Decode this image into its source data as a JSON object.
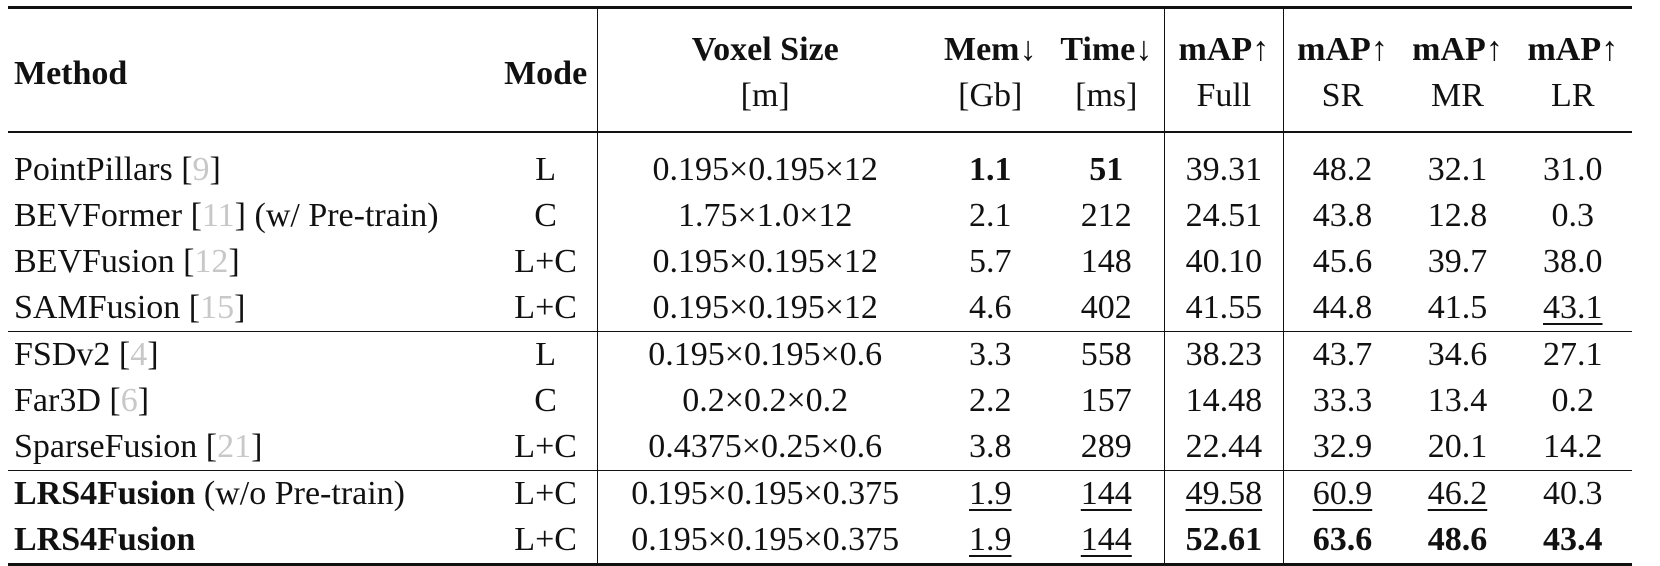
{
  "header": {
    "method": "Method",
    "mode": "Mode",
    "voxel_size": "Voxel Size",
    "voxel_unit": "[m]",
    "mem": "Mem↓",
    "mem_unit": "[Gb]",
    "time": "Time↓",
    "time_unit": "[ms]",
    "map_full": "mAP↑",
    "map_full_sub": "Full",
    "map_sr": "mAP↑",
    "map_sr_sub": "SR",
    "map_mr": "mAP↑",
    "map_mr_sub": "MR",
    "map_lr": "mAP↑",
    "map_lr_sub": "LR"
  },
  "rows": [
    {
      "name": "PointPillars [",
      "ref": "9",
      "suffix": "]",
      "mode": "L",
      "voxel": "0.195×0.195×12",
      "mem": "1.1",
      "time": "51",
      "full": "39.31",
      "sr": "48.2",
      "mr": "32.1",
      "lr": "31.0"
    },
    {
      "name": "BEVFormer [",
      "ref": "11",
      "suffix": "] (w/ Pre-train)",
      "mode": "C",
      "voxel": "1.75×1.0×12",
      "mem": "2.1",
      "time": "212",
      "full": "24.51",
      "sr": "43.8",
      "mr": "12.8",
      "lr": "0.3"
    },
    {
      "name": "BEVFusion [",
      "ref": "12",
      "suffix": "]",
      "mode": "L+C",
      "voxel": "0.195×0.195×12",
      "mem": "5.7",
      "time": "148",
      "full": "40.10",
      "sr": "45.6",
      "mr": "39.7",
      "lr": "38.0"
    },
    {
      "name": "SAMFusion [",
      "ref": "15",
      "suffix": "]",
      "mode": "L+C",
      "voxel": "0.195×0.195×12",
      "mem": "4.6",
      "time": "402",
      "full": "41.55",
      "sr": "44.8",
      "mr": "41.5",
      "lr": "43.1"
    },
    {
      "name": "FSDv2 [",
      "ref": "4",
      "suffix": "]",
      "mode": "L",
      "voxel": "0.195×0.195×0.6",
      "mem": "3.3",
      "time": "558",
      "full": "38.23",
      "sr": "43.7",
      "mr": "34.6",
      "lr": "27.1"
    },
    {
      "name": "Far3D [",
      "ref": "6",
      "suffix": "]",
      "mode": "C",
      "voxel": "0.2×0.2×0.2",
      "mem": "2.2",
      "time": "157",
      "full": "14.48",
      "sr": "33.3",
      "mr": "13.4",
      "lr": "0.2"
    },
    {
      "name": "SparseFusion [",
      "ref": "21",
      "suffix": "]",
      "mode": "L+C",
      "voxel": "0.4375×0.25×0.6",
      "mem": "3.8",
      "time": "289",
      "full": "22.44",
      "sr": "32.9",
      "mr": "20.1",
      "lr": "14.2"
    },
    {
      "name": "LRS4Fusion",
      "suffix": " (w/o Pre-train)",
      "mode": "L+C",
      "voxel": "0.195×0.195×0.375",
      "mem": "1.9",
      "time": "144",
      "full": "49.58",
      "sr": "60.9",
      "mr": "46.2",
      "lr": "40.3"
    },
    {
      "name": "LRS4Fusion",
      "mode": "L+C",
      "voxel": "0.195×0.195×0.375",
      "mem": "1.9",
      "time": "144",
      "full": "52.61",
      "sr": "63.6",
      "mr": "48.6",
      "lr": "43.4"
    }
  ]
}
